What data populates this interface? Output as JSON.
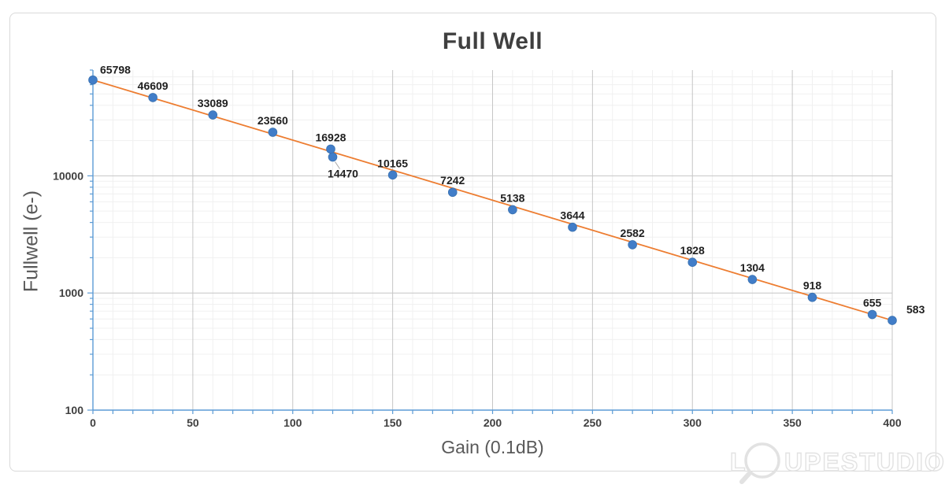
{
  "chart_data": {
    "type": "scatter",
    "title": "Full Well",
    "xlabel": "Gain (0.1dB)",
    "ylabel": "Fullwell (e-)",
    "x_scale": "linear",
    "y_scale": "log",
    "xlim": [
      0,
      400
    ],
    "ylim": [
      100,
      80000
    ],
    "x_ticks": [
      0,
      50,
      100,
      150,
      200,
      250,
      300,
      350,
      400
    ],
    "x_minor_step": 10,
    "y_ticks": [
      100,
      1000,
      10000
    ],
    "grid": true,
    "legend": false,
    "series": [
      {
        "name": "Full Well",
        "points": [
          {
            "x": 0,
            "y": 65798,
            "label": "65798",
            "label_anchor": "start",
            "label_dx": 9,
            "label_dy": 2
          },
          {
            "x": 30,
            "y": 46609,
            "label": "46609"
          },
          {
            "x": 60,
            "y": 33089,
            "label": "33089"
          },
          {
            "x": 90,
            "y": 23560,
            "label": "23560"
          },
          {
            "x": 119,
            "y": 16928,
            "label": "16928"
          },
          {
            "x": 120,
            "y": 14470,
            "label": "14470",
            "label_dx": 13,
            "label_dy": 36,
            "leader": true
          },
          {
            "x": 150,
            "y": 10165,
            "label": "10165"
          },
          {
            "x": 180,
            "y": 7242,
            "label": "7242"
          },
          {
            "x": 210,
            "y": 5138,
            "label": "5138"
          },
          {
            "x": 240,
            "y": 3644,
            "label": "3644"
          },
          {
            "x": 270,
            "y": 2582,
            "label": "2582"
          },
          {
            "x": 300,
            "y": 1828,
            "label": "1828"
          },
          {
            "x": 330,
            "y": 1304,
            "label": "1304"
          },
          {
            "x": 360,
            "y": 918,
            "label": "918"
          },
          {
            "x": 390,
            "y": 655,
            "label": "655"
          },
          {
            "x": 400,
            "y": 583,
            "label": "583",
            "label_anchor": "start",
            "label_dx": 18,
            "label_dy": 1
          }
        ]
      }
    ]
  },
  "colors": {
    "axis": "#5B9BD5",
    "grid_major": "#C6C6C6",
    "grid_minor": "#F0F0F0",
    "trendline": "#ED7D31",
    "marker": "#417DC8",
    "marker_border": "#3A72B1",
    "title": "#3F3F3F",
    "axis_title": "#595959",
    "tick_label": "#404040",
    "data_label": "#1F1F1F",
    "chart_border": "#D9D9D9",
    "leader": "#A6A6A6",
    "watermark": "#E2E2E2"
  },
  "watermark": {
    "prefix": "L",
    "middle": "UPE",
    "suffix": "STUDIO"
  }
}
